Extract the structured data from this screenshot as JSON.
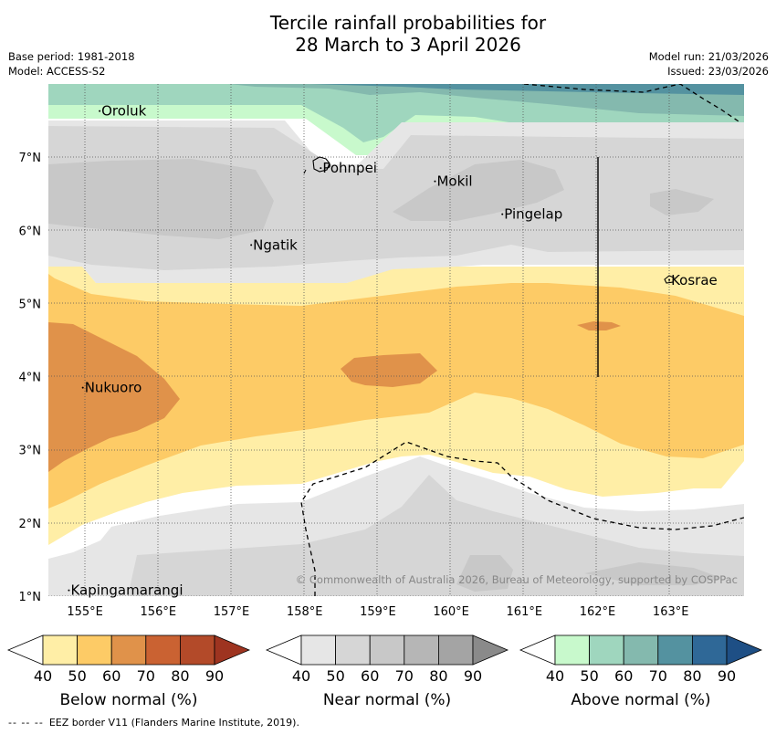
{
  "title_line1": "Tercile rainfall probabilities for",
  "title_line2": "28 March to 3 April 2026",
  "base_period": "Base period: 1981-2018",
  "model": "Model: ACCESS-S2",
  "model_run": "Model run: 21/03/2026",
  "issued": "Issued: 23/03/2026",
  "copyright": "© Commonwealth of Australia 2026, Bureau of Meteorology, supported by COSPPac",
  "footer_note": "EEZ border V11 (Flanders Marine Institute, 2019).",
  "footer_dash": "-- -- --",
  "axes": {
    "x_ticks": [
      "155°E",
      "156°E",
      "157°E",
      "158°E",
      "159°E",
      "160°E",
      "161°E",
      "162°E",
      "163°E"
    ],
    "y_ticks": [
      "1°N",
      "2°N",
      "3°N",
      "4°N",
      "5°N",
      "6°N",
      "7°N"
    ]
  },
  "places": [
    {
      "name": "Oroluk",
      "lat": 7.63,
      "lon": 155.2
    },
    {
      "name": "Pohnpei",
      "lat": 6.85,
      "lon": 158.22
    },
    {
      "name": "Mokil",
      "lat": 6.67,
      "lon": 159.78
    },
    {
      "name": "Pingelap",
      "lat": 6.22,
      "lon": 160.7
    },
    {
      "name": "Ngatik",
      "lat": 5.8,
      "lon": 157.27
    },
    {
      "name": "Kosrae",
      "lat": 5.32,
      "lon": 162.98
    },
    {
      "name": "Nukuoro",
      "lat": 3.85,
      "lon": 154.97
    },
    {
      "name": "Kapingamarangi",
      "lat": 1.08,
      "lon": 154.78
    }
  ],
  "colorbars": [
    {
      "label": "Below normal (%)",
      "ticks": [
        "40",
        "50",
        "60",
        "70",
        "80",
        "90"
      ],
      "colors": [
        "#ffeea6",
        "#fdcb66",
        "#e0924a",
        "#ca6232",
        "#b34a29",
        "#9e3420"
      ]
    },
    {
      "label": "Near normal (%)",
      "ticks": [
        "40",
        "50",
        "60",
        "70",
        "80",
        "90"
      ],
      "colors": [
        "#e6e6e6",
        "#d6d6d6",
        "#c8c8c8",
        "#b6b6b6",
        "#a4a4a4",
        "#8a8a8a"
      ]
    },
    {
      "label": "Above normal (%)",
      "ticks": [
        "40",
        "50",
        "60",
        "70",
        "80",
        "90"
      ],
      "colors": [
        "#c8f9cc",
        "#9fd6be",
        "#84b9ae",
        "#5492a0",
        "#2f6897",
        "#1e4f85"
      ]
    }
  ]
}
